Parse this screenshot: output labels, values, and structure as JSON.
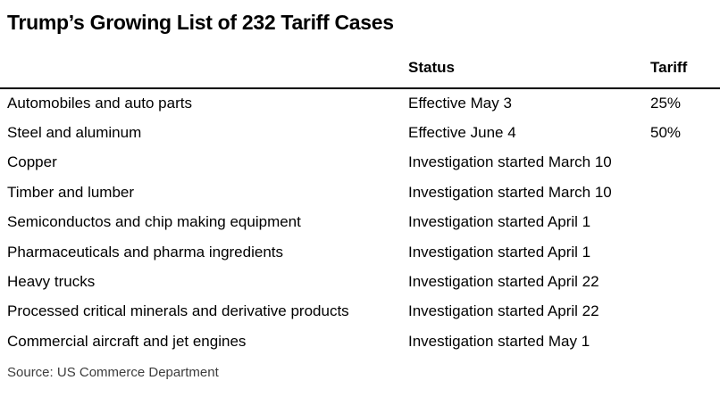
{
  "title": "Trump’s Growing List of 232 Tariff Cases",
  "source": "Source: US Commerce Department",
  "colors": {
    "background": "#ffffff",
    "text": "#000000",
    "source_text": "#3d3d3d",
    "header_rule": "#000000"
  },
  "chart_data": {
    "type": "table",
    "title": "Trump’s Growing List of 232 Tariff Cases",
    "columns": [
      "",
      "Status",
      "Tariff"
    ],
    "rows": [
      {
        "item": "Automobiles and auto parts",
        "status": "Effective May 3",
        "tariff": "25%"
      },
      {
        "item": "Steel and aluminum",
        "status": "Effective June 4",
        "tariff": "50%"
      },
      {
        "item": "Copper",
        "status": "Investigation started March 10",
        "tariff": ""
      },
      {
        "item": "Timber and lumber",
        "status": "Investigation started March 10",
        "tariff": ""
      },
      {
        "item": "Semiconductos and chip making equipment",
        "status": "Investigation started April 1",
        "tariff": ""
      },
      {
        "item": "Pharmaceuticals and pharma ingredients",
        "status": "Investigation started April 1",
        "tariff": ""
      },
      {
        "item": "Heavy trucks",
        "status": "Investigation started April 22",
        "tariff": ""
      },
      {
        "item": "Processed critical minerals and derivative products",
        "status": "Investigation started April 22",
        "tariff": ""
      },
      {
        "item": "Commercial aircraft and jet engines",
        "status": "Investigation started May 1",
        "tariff": ""
      }
    ],
    "source": "Source: US Commerce Department",
    "layout": {
      "grid": "off",
      "row_dividers": "none",
      "header_rule": "full-width solid black",
      "tariff_blank_when_investigation": true
    }
  }
}
